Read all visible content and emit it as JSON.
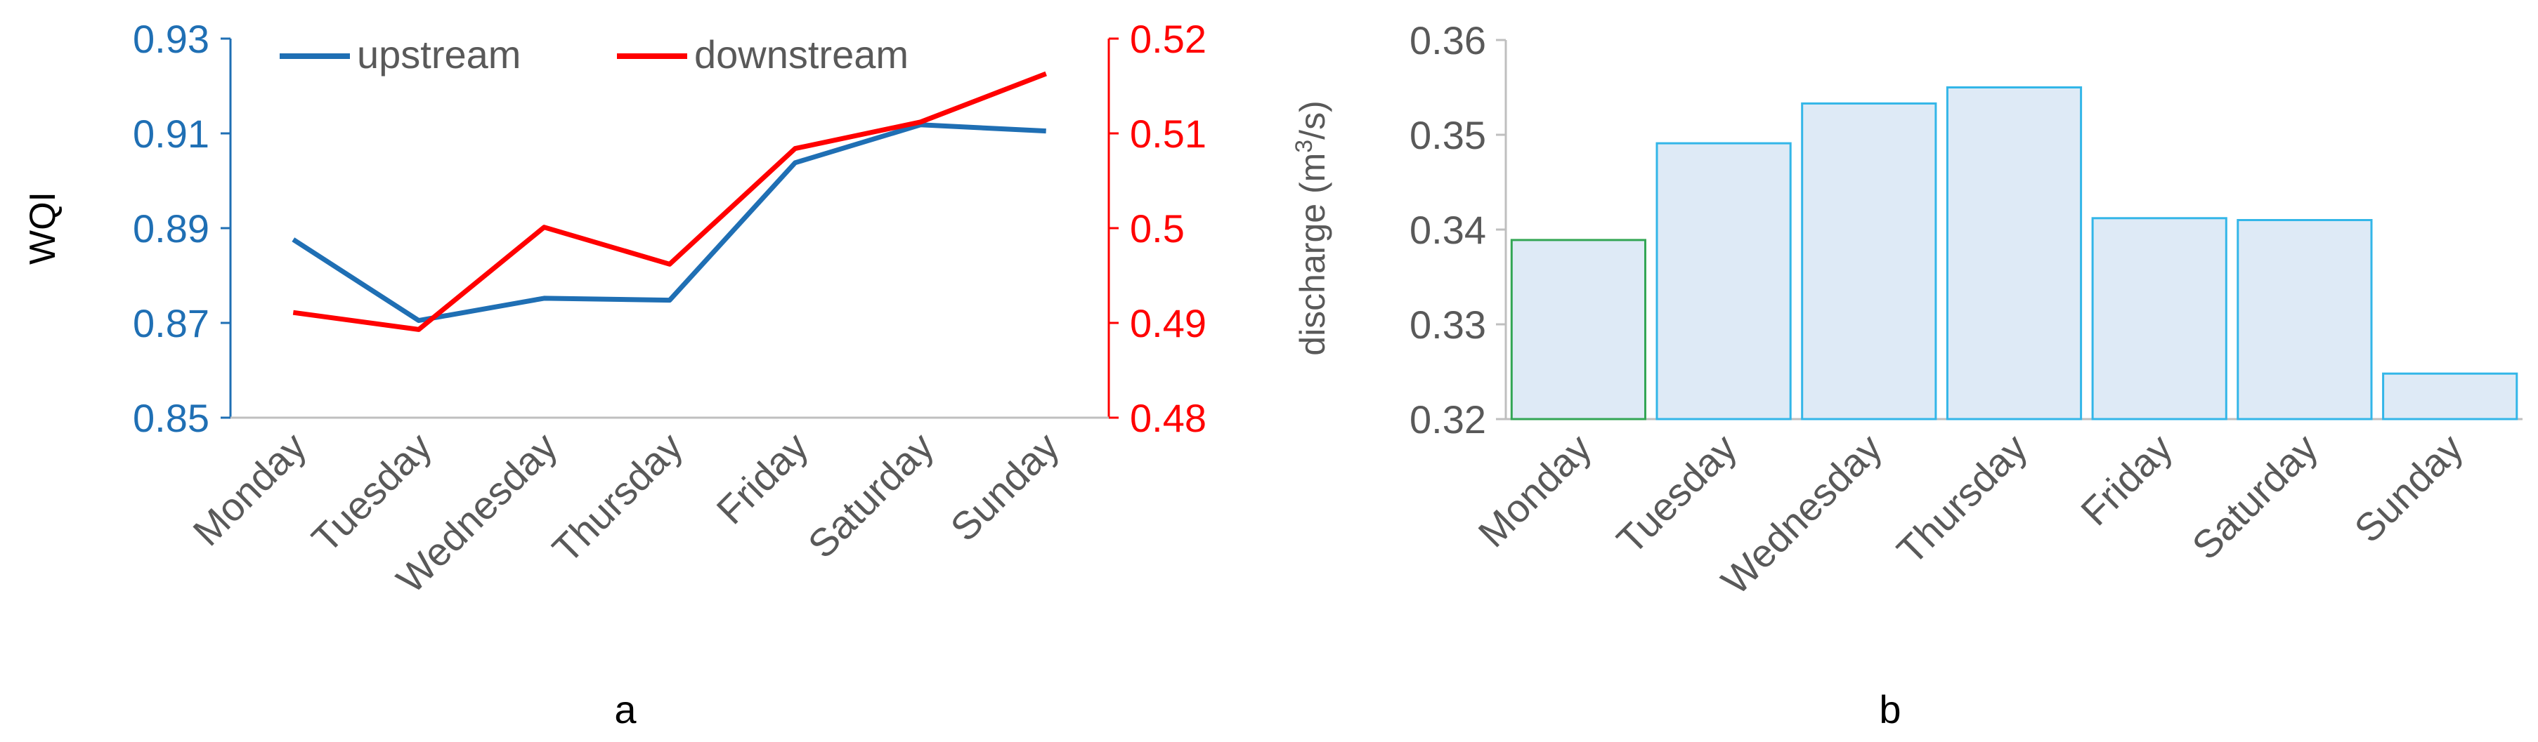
{
  "colors": {
    "upstream": "#1F6FB4",
    "downstream": "#FF0000",
    "bar_fill": "#DEEAF6",
    "bar_edge": "#33B6E8",
    "bar_edge_first": "#33A655",
    "text_gray": "#595959",
    "axis_gray": "#BFBFBF"
  },
  "chart_data": [
    {
      "panel_label": "a",
      "type": "line",
      "categories": [
        "Monday",
        "Tuesday",
        "Wednesday",
        "Thursday",
        "Friday",
        "Saturday",
        "Sunday"
      ],
      "ylabel": "WQI",
      "y_left": {
        "min": 0.85,
        "max": 0.93,
        "ticks": [
          "0.85",
          "0.87",
          "0.89",
          "0.91",
          "0.93"
        ]
      },
      "y_right": {
        "min": 0.48,
        "max": 0.52,
        "ticks": [
          "0.48",
          "0.49",
          "0.5",
          "0.51",
          "0.52"
        ]
      },
      "grid": false,
      "legend": "top",
      "series": [
        {
          "name": "upstream",
          "axis": "left",
          "values": [
            0.8876,
            0.8705,
            0.8752,
            0.8748,
            0.9038,
            0.9118,
            0.9105
          ]
        },
        {
          "name": "downstream",
          "axis": "right",
          "values": [
            0.4911,
            0.4893,
            0.5001,
            0.4962,
            0.5084,
            0.5112,
            0.5163
          ]
        }
      ]
    },
    {
      "panel_label": "b",
      "type": "bar",
      "categories": [
        "Monday",
        "Tuesday",
        "Wednesday",
        "Thursday",
        "Friday",
        "Saturday",
        "Sunday"
      ],
      "ylabel_main": "discharge (m",
      "ylabel_sup": "3",
      "ylabel_end": "/s)",
      "ylim": [
        0.32,
        0.36
      ],
      "ticks": [
        "0.32",
        "0.33",
        "0.34",
        "0.35",
        "0.36"
      ],
      "grid": false,
      "values": [
        0.3389,
        0.3491,
        0.3533,
        0.355,
        0.3412,
        0.341,
        0.3248
      ]
    }
  ]
}
